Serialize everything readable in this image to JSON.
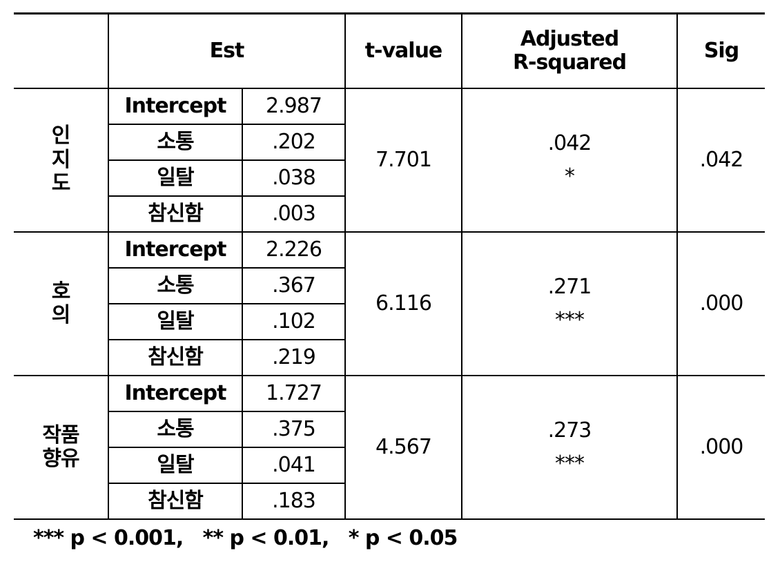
{
  "table": {
    "header": [
      "Est",
      "t-value",
      [
        "Adjusted",
        "R-squared"
      ],
      "Sig"
    ],
    "groups": [
      {
        "label": [
          "인",
          "지",
          "도"
        ],
        "rows": [
          [
            "Intercept",
            "2.987"
          ],
          [
            "소통",
            ".202"
          ],
          [
            "일탈",
            ".038"
          ],
          [
            "참신함",
            ".003"
          ]
        ],
        "t_value": "7.701",
        "adj_r2": ".042",
        "stars": "*",
        "sig": ".042"
      },
      {
        "label": [
          "호",
          "의"
        ],
        "rows": [
          [
            "Intercept",
            "2.226"
          ],
          [
            "소통",
            ".367"
          ],
          [
            "일탈",
            ".102"
          ],
          [
            "참신함",
            ".219"
          ]
        ],
        "t_value": "6.116",
        "adj_r2": ".271",
        "stars": "***",
        "sig": ".000"
      },
      {
        "label": [
          "작품",
          "향유"
        ],
        "rows": [
          [
            "Intercept",
            "1.727"
          ],
          [
            "소통",
            ".375"
          ],
          [
            "일탈",
            ".041"
          ],
          [
            "참신함",
            ".183"
          ]
        ],
        "t_value": "4.567",
        "adj_r2": ".273",
        "stars": "***",
        "sig": ".000"
      }
    ]
  },
  "footnote": "*** p < 0.001,   ** p < 0.01,   * p < 0.05"
}
